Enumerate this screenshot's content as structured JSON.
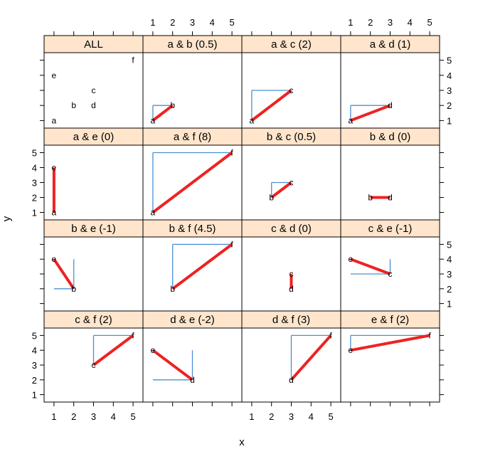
{
  "chart_data": {
    "type": "scatter",
    "layout": "trellis",
    "xlabel": "x",
    "ylabel": "y",
    "xlim": [
      0.5,
      5.5
    ],
    "ylim": [
      0.5,
      5.5
    ],
    "ticks": [
      1,
      2,
      3,
      4,
      5
    ],
    "points": {
      "a": [
        1,
        1
      ],
      "b": [
        2,
        2
      ],
      "c": [
        3,
        3
      ],
      "d": [
        3,
        2
      ],
      "e": [
        1,
        4
      ],
      "f": [
        5,
        5
      ]
    },
    "panels": [
      {
        "title": "ALL",
        "pair": []
      },
      {
        "title": "a & b  (0.5)",
        "pair": [
          "a",
          "b"
        ]
      },
      {
        "title": "a & c  (2)",
        "pair": [
          "a",
          "c"
        ]
      },
      {
        "title": "a & d  (1)",
        "pair": [
          "a",
          "d"
        ]
      },
      {
        "title": "a & e  (0)",
        "pair": [
          "a",
          "e"
        ]
      },
      {
        "title": "a & f  (8)",
        "pair": [
          "a",
          "f"
        ]
      },
      {
        "title": "b & c  (0.5)",
        "pair": [
          "b",
          "c"
        ]
      },
      {
        "title": "b & d  (0)",
        "pair": [
          "b",
          "d"
        ]
      },
      {
        "title": "b & e  (-1)",
        "pair": [
          "b",
          "e"
        ]
      },
      {
        "title": "b & f  (4.5)",
        "pair": [
          "b",
          "f"
        ]
      },
      {
        "title": "c & d  (0)",
        "pair": [
          "c",
          "d"
        ]
      },
      {
        "title": "c & e  (-1)",
        "pair": [
          "c",
          "e"
        ]
      },
      {
        "title": "c & f  (2)",
        "pair": [
          "c",
          "f"
        ]
      },
      {
        "title": "d & e  (-2)",
        "pair": [
          "d",
          "e"
        ]
      },
      {
        "title": "d & f  (3)",
        "pair": [
          "d",
          "f"
        ]
      },
      {
        "title": "e & f  (2)",
        "pair": [
          "e",
          "f"
        ]
      }
    ],
    "colors": {
      "strip": "#FFE5CC",
      "segment": "#EE2222",
      "rect": "#4A90D0",
      "frame": "#000000"
    }
  }
}
